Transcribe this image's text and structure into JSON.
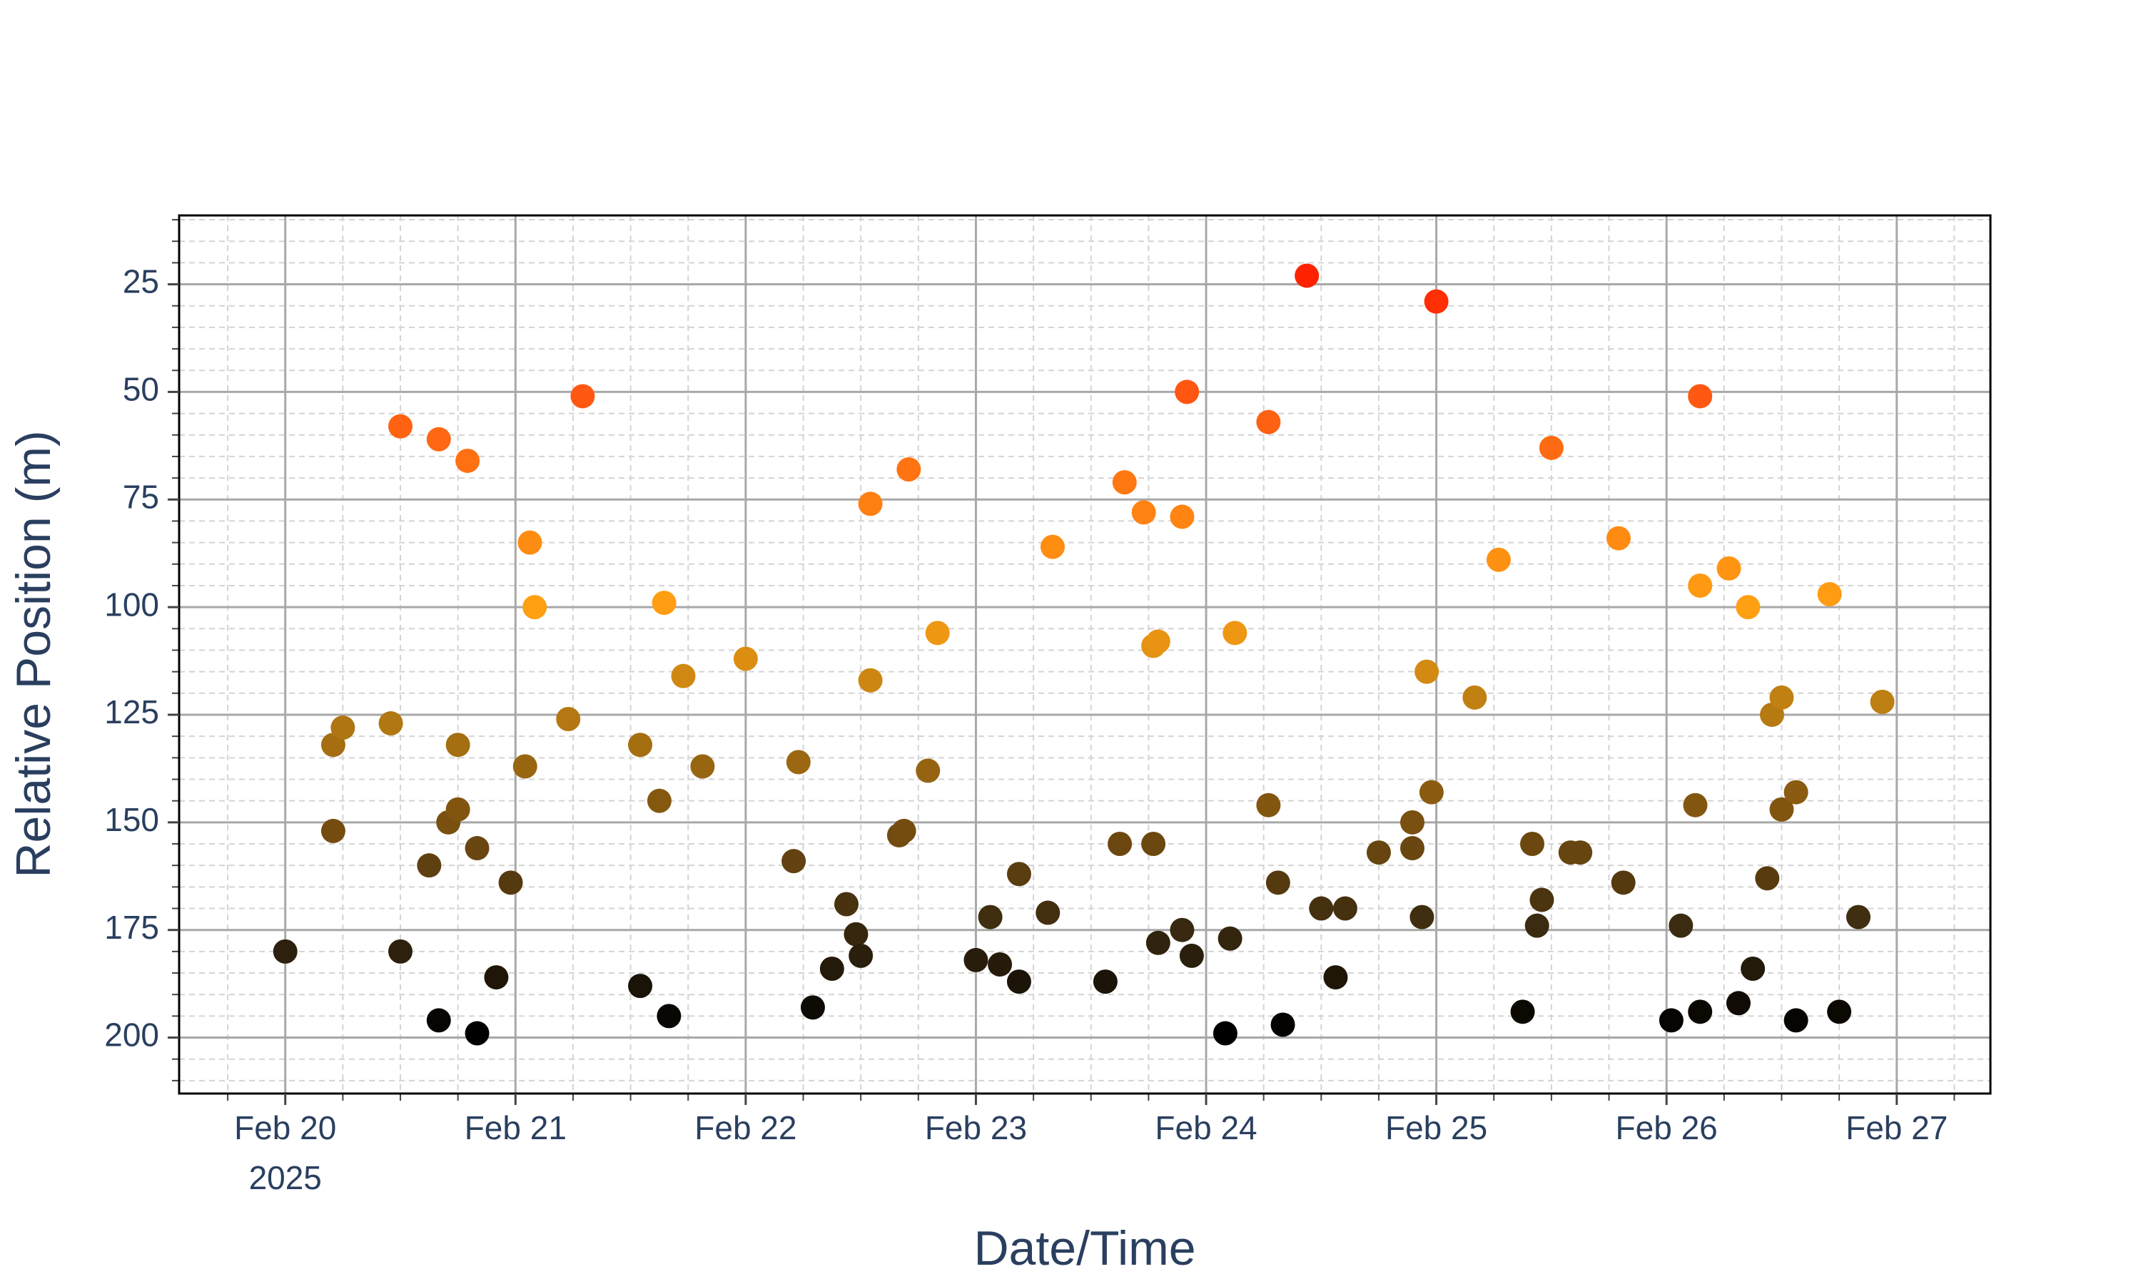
{
  "chart_data": {
    "type": "scatter",
    "x_label": "Date/Time",
    "y_label": "Relative Position (m)",
    "year_label": "2025",
    "x": [
      "2025-02-20 00:00",
      "2025-02-20 05:00",
      "2025-02-20 05:00",
      "2025-02-20 06:00",
      "2025-02-20 11:00",
      "2025-02-20 12:00",
      "2025-02-20 12:00",
      "2025-02-20 15:00",
      "2025-02-20 16:00",
      "2025-02-20 16:00",
      "2025-02-20 17:00",
      "2025-02-20 18:00",
      "2025-02-20 18:00",
      "2025-02-20 19:00",
      "2025-02-20 20:00",
      "2025-02-20 20:00",
      "2025-02-20 22:00",
      "2025-02-20 23:30",
      "2025-02-21 01:00",
      "2025-02-21 01:30",
      "2025-02-21 02:00",
      "2025-02-21 05:30",
      "2025-02-21 07:00",
      "2025-02-21 13:00",
      "2025-02-21 13:00",
      "2025-02-21 15:00",
      "2025-02-21 15:30",
      "2025-02-21 16:00",
      "2025-02-21 17:30",
      "2025-02-21 19:30",
      "2025-02-22 00:00",
      "2025-02-22 05:00",
      "2025-02-22 05:30",
      "2025-02-22 07:00",
      "2025-02-22 09:00",
      "2025-02-22 10:30",
      "2025-02-22 11:30",
      "2025-02-22 12:00",
      "2025-02-22 13:00",
      "2025-02-22 13:00",
      "2025-02-22 16:00",
      "2025-02-22 16:30",
      "2025-02-22 17:00",
      "2025-02-22 19:00",
      "2025-02-22 20:00",
      "2025-02-23 00:00",
      "2025-02-23 01:30",
      "2025-02-23 02:30",
      "2025-02-23 04:30",
      "2025-02-23 04:30",
      "2025-02-23 07:30",
      "2025-02-23 08:00",
      "2025-02-23 13:30",
      "2025-02-23 15:00",
      "2025-02-23 15:30",
      "2025-02-23 17:30",
      "2025-02-23 18:30",
      "2025-02-23 18:30",
      "2025-02-23 19:00",
      "2025-02-23 19:00",
      "2025-02-23 21:30",
      "2025-02-23 21:30",
      "2025-02-23 22:00",
      "2025-02-23 22:30",
      "2025-02-24 02:00",
      "2025-02-24 02:30",
      "2025-02-24 03:00",
      "2025-02-24 06:30",
      "2025-02-24 06:30",
      "2025-02-24 07:30",
      "2025-02-24 08:00",
      "2025-02-24 10:30",
      "2025-02-24 12:00",
      "2025-02-24 13:30",
      "2025-02-24 14:30",
      "2025-02-24 18:00",
      "2025-02-24 21:30",
      "2025-02-24 21:30",
      "2025-02-24 22:30",
      "2025-02-24 23:00",
      "2025-02-24 23:30",
      "2025-02-25 00:00",
      "2025-02-25 04:00",
      "2025-02-25 06:30",
      "2025-02-25 09:00",
      "2025-02-25 10:00",
      "2025-02-25 10:30",
      "2025-02-25 11:00",
      "2025-02-25 12:00",
      "2025-02-25 14:00",
      "2025-02-25 15:00",
      "2025-02-25 19:00",
      "2025-02-25 19:30",
      "2025-02-26 00:30",
      "2025-02-26 01:30",
      "2025-02-26 03:00",
      "2025-02-26 03:30",
      "2025-02-26 03:30",
      "2025-02-26 03:30",
      "2025-02-26 06:30",
      "2025-02-26 07:30",
      "2025-02-26 08:30",
      "2025-02-26 09:00",
      "2025-02-26 10:30",
      "2025-02-26 11:00",
      "2025-02-26 12:00",
      "2025-02-26 12:00",
      "2025-02-26 13:30",
      "2025-02-26 13:30",
      "2025-02-26 17:00",
      "2025-02-26 18:00",
      "2025-02-26 20:00",
      "2025-02-26 22:30"
    ],
    "values": [
      180,
      152,
      132,
      128,
      127,
      180,
      58,
      160,
      196,
      61,
      150,
      147,
      132,
      66,
      156,
      199,
      186,
      164,
      137,
      85,
      100,
      126,
      51,
      132,
      188,
      145,
      99,
      195,
      116,
      137,
      112,
      159,
      136,
      193,
      184,
      169,
      176,
      181,
      76,
      117,
      153,
      152,
      68,
      138,
      106,
      182,
      172,
      183,
      162,
      187,
      171,
      86,
      187,
      155,
      71,
      78,
      109,
      155,
      108,
      178,
      175,
      79,
      50,
      181,
      199,
      177,
      106,
      57,
      146,
      164,
      197,
      23,
      170,
      186,
      170,
      157,
      156,
      150,
      172,
      115,
      143,
      29,
      121,
      89,
      194,
      155,
      174,
      168,
      63,
      157,
      157,
      84,
      164,
      196,
      174,
      146,
      194,
      51,
      95,
      91,
      192,
      100,
      184,
      163,
      125,
      147,
      121,
      196,
      143,
      97,
      194,
      172,
      122
    ],
    "colorscale": [
      [
        0,
        "#000000"
      ],
      [
        0.14,
        "#3a2a10"
      ],
      [
        0.28,
        "#7a5010"
      ],
      [
        0.42,
        "#b57a12"
      ],
      [
        0.56,
        "#ffa012"
      ],
      [
        0.7,
        "#ff8012"
      ],
      [
        0.85,
        "#ff5512"
      ],
      [
        1,
        "#ff2200"
      ]
    ],
    "xlim": [
      "2025-02-19 12:56",
      "2025-02-27 09:46"
    ],
    "xticks": [
      {
        "value": "2025-02-20 00:00",
        "label": "Feb 20"
      },
      {
        "value": "2025-02-21 00:00",
        "label": "Feb 21"
      },
      {
        "value": "2025-02-22 00:00",
        "label": "Feb 22"
      },
      {
        "value": "2025-02-23 00:00",
        "label": "Feb 23"
      },
      {
        "value": "2025-02-24 00:00",
        "label": "Feb 24"
      },
      {
        "value": "2025-02-25 00:00",
        "label": "Feb 25"
      },
      {
        "value": "2025-02-26 00:00",
        "label": "Feb 26"
      },
      {
        "value": "2025-02-27 00:00",
        "label": "Feb 27"
      }
    ],
    "ylim": [
      213,
      9
    ],
    "yticks": [
      25,
      50,
      75,
      100,
      125,
      150,
      175,
      200
    ],
    "grid": true,
    "minor_grid": true
  }
}
